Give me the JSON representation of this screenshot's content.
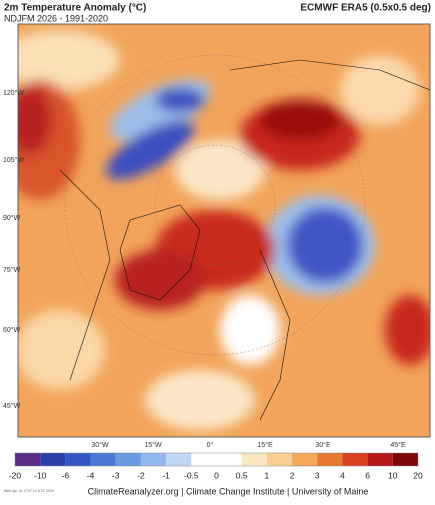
{
  "header": {
    "title": "2m Temperature Anomaly (°C)",
    "subtitle": "NDJFM 2026 - 1991-2020",
    "dataset": "ECMWF ERA5 (0.5x0.5 deg)"
  },
  "left_labels": [
    "120°W",
    "105°W",
    "90°W",
    "75°W",
    "60°W",
    "45°W"
  ],
  "bottom_labels": [
    "30°W",
    "15°W",
    "0°",
    "15°E",
    "30°E",
    "45°E"
  ],
  "legend": {
    "labels": [
      "-20",
      "-10",
      "-6",
      "-4",
      "-3",
      "-2",
      "-1",
      "-0.5",
      "0",
      "0.5",
      "1",
      "2",
      "3",
      "4",
      "6",
      "10",
      "20"
    ],
    "colors": [
      "#5b2a86",
      "#2a3fa8",
      "#3356c2",
      "#4a78d4",
      "#6b99e2",
      "#92b8ee",
      "#bfd7f5",
      "#ffffff",
      "#ffffff",
      "#fbe8c2",
      "#f8cf8e",
      "#f3a85a",
      "#e9782f",
      "#d8401f",
      "#b41818",
      "#7a0808"
    ]
  },
  "footer": {
    "timestamp": "Wed Apr 15 17:07:14 UTC 2026",
    "credits": "ClimateReanalyzer.org | Climate Change Institute | University of Maine"
  }
}
